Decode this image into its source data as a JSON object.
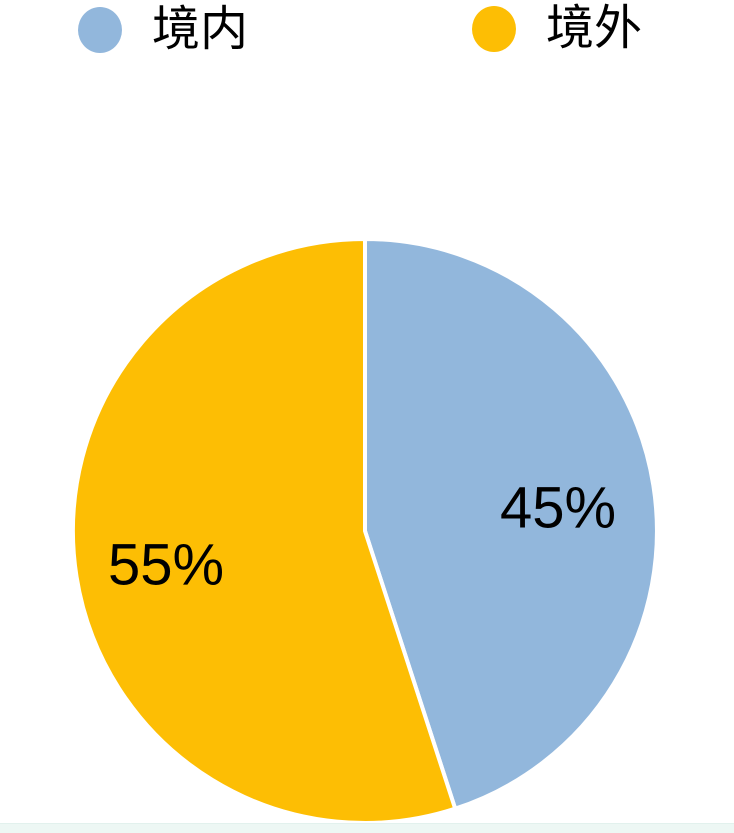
{
  "chart_data": {
    "type": "pie",
    "legend_position": "top",
    "start_angle_deg": -90,
    "direction": "clockwise",
    "background_color": "#ffffff",
    "separator_color": "#ffffff",
    "label_color": "#000000",
    "slices": [
      {
        "name": "境内",
        "value": 45,
        "label": "45%",
        "color": "#92b7dc"
      },
      {
        "name": "境外",
        "value": 55,
        "label": "55%",
        "color": "#fdbe04"
      }
    ]
  },
  "footer": {
    "strip_color": "#edf7f4"
  }
}
